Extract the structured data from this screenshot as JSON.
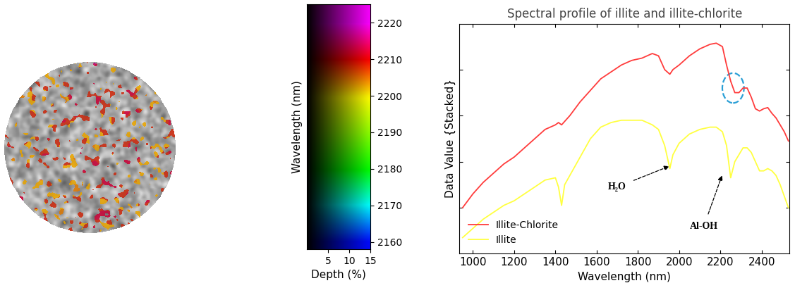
{
  "chart_data": {
    "type": "line",
    "title": "Spectral profile of illite and illite-chlorite",
    "x_label": "Wavelength (nm)",
    "y_label": "Data Value {Stacked}",
    "xlim": [
      935,
      2535
    ],
    "xticks": [
      1000,
      1200,
      1400,
      1600,
      1800,
      2000,
      2200,
      2400
    ],
    "ylim": [
      0,
      1
    ],
    "yticks": [
      0.2,
      0.4,
      0.6,
      0.8
    ],
    "tick_labels": "x",
    "legend": "lower left",
    "x": [
      950,
      1000,
      1050,
      1100,
      1150,
      1200,
      1250,
      1300,
      1350,
      1400,
      1415,
      1430,
      1445,
      1470,
      1520,
      1570,
      1620,
      1670,
      1720,
      1770,
      1820,
      1870,
      1900,
      1930,
      1955,
      1970,
      2000,
      2050,
      2100,
      2150,
      2180,
      2210,
      2230,
      2250,
      2270,
      2290,
      2310,
      2330,
      2350,
      2370,
      2390,
      2410,
      2430,
      2450,
      2470,
      2490,
      2510,
      2530
    ],
    "series": [
      {
        "name": "Illite-Chlorite",
        "color": "#ff3c3c",
        "values": [
          0.2,
          0.26,
          0.31,
          0.35,
          0.39,
          0.42,
          0.46,
          0.5,
          0.54,
          0.56,
          0.57,
          0.56,
          0.575,
          0.6,
          0.66,
          0.71,
          0.76,
          0.79,
          0.82,
          0.84,
          0.85,
          0.87,
          0.86,
          0.8,
          0.78,
          0.8,
          0.82,
          0.86,
          0.89,
          0.91,
          0.915,
          0.9,
          0.82,
          0.75,
          0.7,
          0.7,
          0.72,
          0.72,
          0.68,
          0.63,
          0.62,
          0.63,
          0.635,
          0.61,
          0.59,
          0.56,
          0.53,
          0.49
        ]
      },
      {
        "name": "Illite",
        "color": "#ffff40",
        "values": [
          0.07,
          0.11,
          0.15,
          0.18,
          0.21,
          0.23,
          0.26,
          0.29,
          0.32,
          0.33,
          0.29,
          0.21,
          0.3,
          0.34,
          0.42,
          0.5,
          0.55,
          0.57,
          0.58,
          0.58,
          0.58,
          0.56,
          0.54,
          0.47,
          0.37,
          0.43,
          0.48,
          0.52,
          0.54,
          0.55,
          0.55,
          0.53,
          0.47,
          0.33,
          0.4,
          0.43,
          0.46,
          0.46,
          0.44,
          0.4,
          0.36,
          0.36,
          0.37,
          0.36,
          0.34,
          0.3,
          0.25,
          0.2
        ]
      }
    ],
    "annotations": [
      {
        "text": "H₂O",
        "x": 1700,
        "y": 0.29,
        "arrow_x": 1952,
        "arrow_y": 0.38
      },
      {
        "text": "Al-OH",
        "x": 2120,
        "y": 0.12,
        "arrow_x": 2208,
        "arrow_y": 0.34
      }
    ],
    "highlight": {
      "x": 2262,
      "y": 0.72
    }
  },
  "color_legend": {
    "x_label": "Depth (%)",
    "y_label": "Wavelength (nm)",
    "xlim": [
      0,
      15
    ],
    "xticks": [
      5,
      10,
      15
    ],
    "ylim": [
      2158,
      2225
    ],
    "yticks": [
      2160,
      2170,
      2180,
      2190,
      2200,
      2210,
      2220
    ]
  }
}
